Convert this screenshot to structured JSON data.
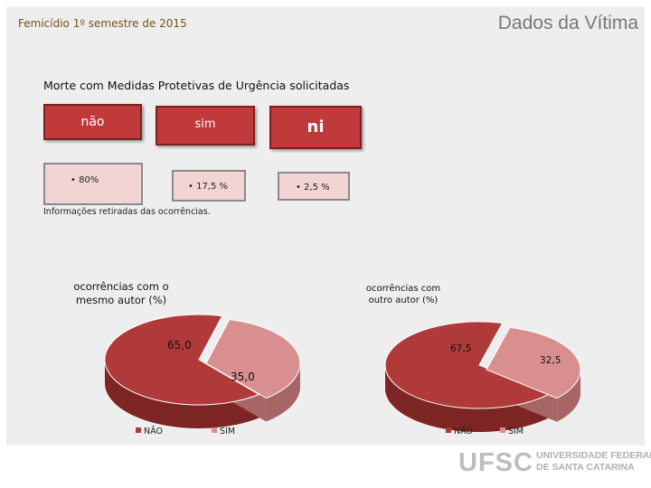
{
  "header": {
    "subtitle": "Femicídio  1º semestre de 2015",
    "title": "Dados da Vítima"
  },
  "section": {
    "title": "Morte com Medidas Protetivas de Urgência solicitadas",
    "categories": [
      "não",
      "sim",
      "ni"
    ],
    "percentages": [
      "• 80%",
      "• 17,5 %",
      "• 2,5 %"
    ],
    "note": "Informações retiradas das ocorrências."
  },
  "colors": {
    "red": "#b03a3a",
    "pink": "#d98f8f",
    "box_red": "#c0393b",
    "box_pink": "#f2d4d4"
  },
  "footer": {
    "logo_text": "UFSC",
    "logo_line1": "UNIVERSIDADE FEDERAL",
    "logo_line2": "DE SANTA CATARINA"
  },
  "chart_data": [
    {
      "type": "pie",
      "title": "ocorrências com o mesmo autor (%)",
      "categories": [
        "NÃO",
        "SIM"
      ],
      "values": [
        65.0,
        35.0
      ],
      "value_labels": [
        "65,0",
        "35,0"
      ],
      "legend": "bottom"
    },
    {
      "type": "pie",
      "title": "ocorrências com outro autor (%)",
      "categories": [
        "NÃO",
        "SIM"
      ],
      "values": [
        67.5,
        32.5
      ],
      "value_labels": [
        "67,5",
        "32,5"
      ],
      "legend": "bottom"
    }
  ]
}
